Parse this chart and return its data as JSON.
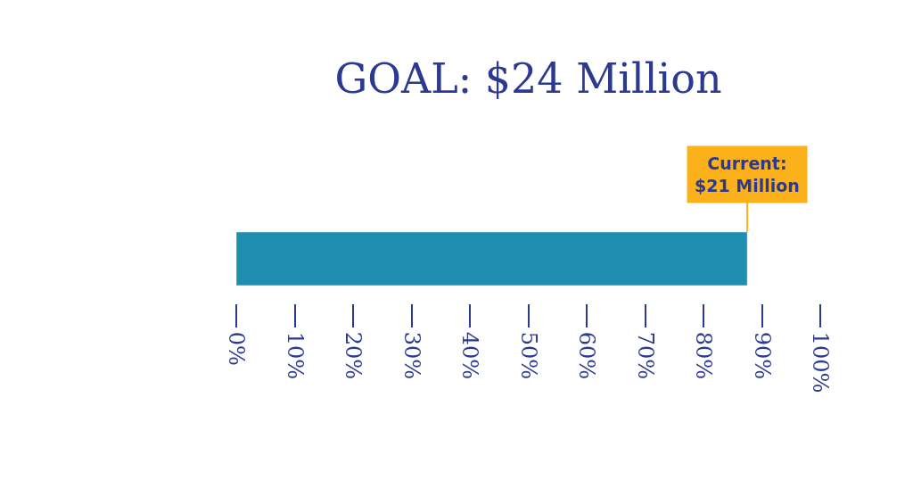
{
  "chart_data": {
    "type": "bar",
    "orientation": "horizontal",
    "title": "GOAL: $24 Million",
    "categories": [
      null
    ],
    "values": [
      87.5
    ],
    "color": "#1f8fb0",
    "xlim": [
      0,
      100
    ],
    "xticks": [
      {
        "value": 0,
        "label": "0%"
      },
      {
        "value": 10,
        "label": "10%"
      },
      {
        "value": 20,
        "label": "20%"
      },
      {
        "value": 30,
        "label": "30%"
      },
      {
        "value": 40,
        "label": "40%"
      },
      {
        "value": 50,
        "label": "50%"
      },
      {
        "value": 60,
        "label": "60%"
      },
      {
        "value": 70,
        "label": "70%"
      },
      {
        "value": 80,
        "label": "80%"
      },
      {
        "value": 90,
        "label": "90%"
      },
      {
        "value": 100,
        "label": "100%"
      }
    ],
    "annotations": [
      {
        "text": "Current:\n$21 Million",
        "x": 87.5
      }
    ]
  }
}
